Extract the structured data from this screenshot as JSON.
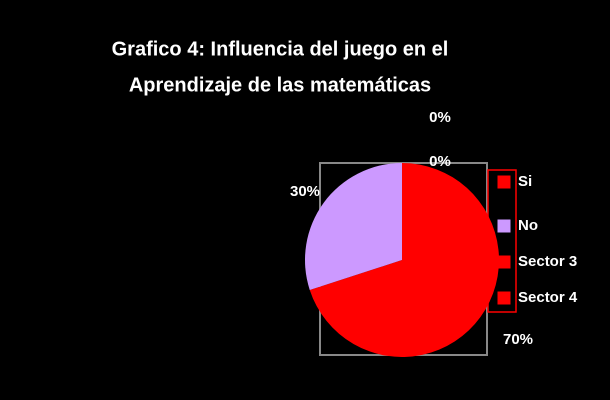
{
  "chart_data": {
    "type": "pie",
    "title": [
      "Grafico 4: Influencia del juego en el",
      "Aprendizaje de las matemáticas"
    ],
    "categories": [
      "Si",
      "No",
      "Sector 3",
      "Sector 4"
    ],
    "values": [
      70,
      30,
      0,
      0
    ],
    "value_labels": [
      "70%",
      "30%",
      "0%",
      "0%"
    ],
    "colors": [
      "#ff0000",
      "#cc99ff",
      "#ff0000",
      "#ff0000"
    ],
    "legend": "right"
  }
}
